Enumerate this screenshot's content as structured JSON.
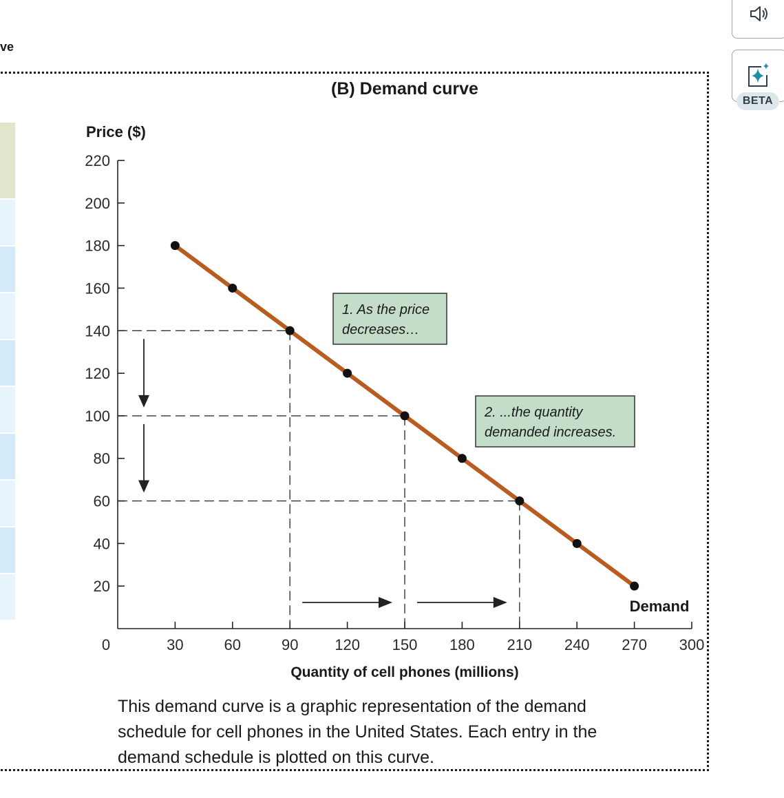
{
  "page": {
    "heading": "ve"
  },
  "toolbar": {
    "audio_icon": "speaker-icon",
    "ai_icon": "sparkle-icon",
    "beta_label": "BETA"
  },
  "left_table": {
    "row_colors": [
      "#dfe6cc",
      "#e8f4fb",
      "#d2eaf9",
      "#e8f4fb",
      "#d2eaf9",
      "#e8f4fb",
      "#d2eaf9",
      "#e8f4fb",
      "#d2eaf9",
      "#e8f4fb"
    ]
  },
  "chart_data": {
    "type": "line",
    "title": "(B) Demand curve",
    "ylabel": "Price ($)",
    "xlabel": "Quantity of cell phones (millions)",
    "xlim": [
      0,
      300
    ],
    "ylim": [
      0,
      220
    ],
    "x_ticks": [
      0,
      30,
      60,
      90,
      120,
      150,
      180,
      210,
      240,
      270,
      300
    ],
    "y_ticks": [
      20,
      40,
      60,
      80,
      100,
      120,
      140,
      160,
      180,
      200,
      220
    ],
    "series": [
      {
        "name": "Demand",
        "color": "#b85c22",
        "points": [
          {
            "x": 30,
            "y": 180
          },
          {
            "x": 60,
            "y": 160
          },
          {
            "x": 90,
            "y": 140
          },
          {
            "x": 120,
            "y": 120
          },
          {
            "x": 150,
            "y": 100
          },
          {
            "x": 180,
            "y": 80
          },
          {
            "x": 210,
            "y": 60
          },
          {
            "x": 240,
            "y": 40
          },
          {
            "x": 270,
            "y": 20
          }
        ]
      }
    ],
    "guides": [
      {
        "x": 90,
        "y": 140
      },
      {
        "x": 150,
        "y": 100
      },
      {
        "x": 210,
        "y": 60
      }
    ],
    "annotations": [
      {
        "lines": [
          "1. As the price",
          "decreases…"
        ],
        "fill": "#c3ddc9"
      },
      {
        "lines": [
          "2.  ...the quantity",
          "demanded increases."
        ],
        "fill": "#c3ddc9"
      }
    ]
  },
  "caption": "This demand curve is a graphic representation of the demand schedule for cell phones in the United States. Each entry in the demand schedule is plotted on this curve."
}
